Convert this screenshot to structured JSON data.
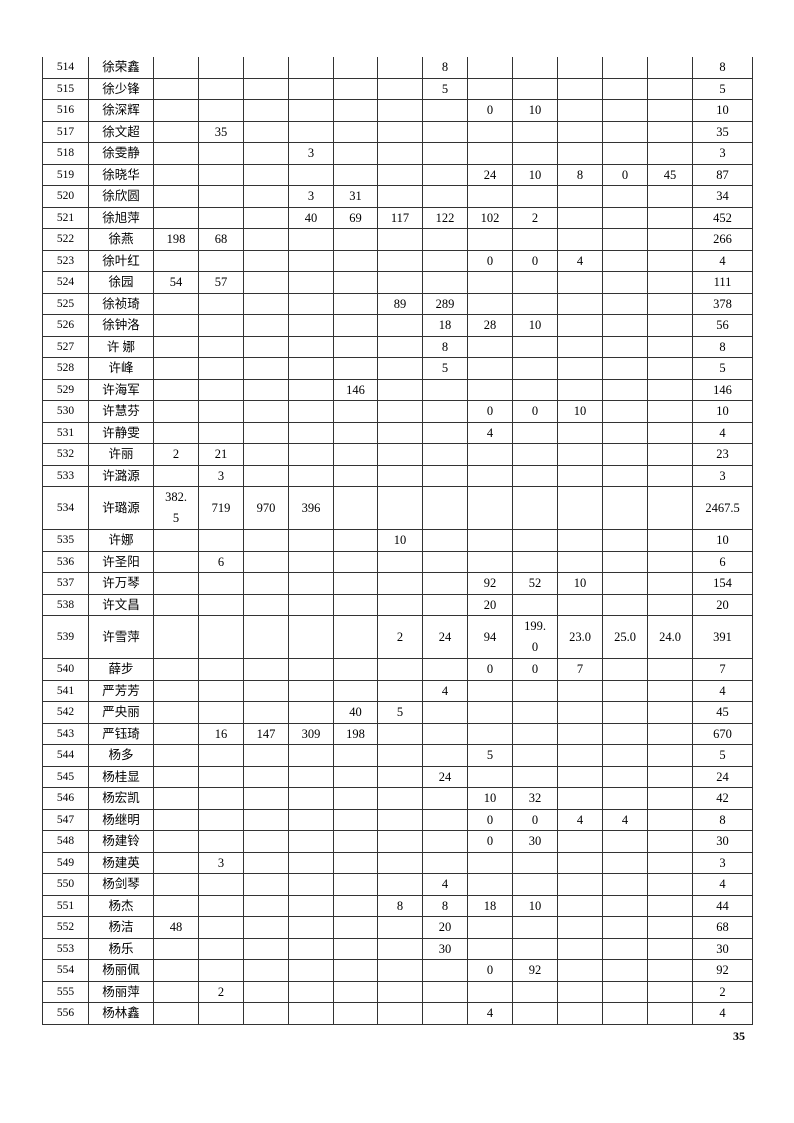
{
  "table": {
    "rows": [
      {
        "no": "514",
        "name": "徐荣鑫",
        "cells": [
          "",
          "",
          "",
          "",
          "",
          "",
          "8",
          "",
          "",
          "",
          "",
          ""
        ],
        "total": "8"
      },
      {
        "no": "515",
        "name": "徐少锋",
        "cells": [
          "",
          "",
          "",
          "",
          "",
          "",
          "5",
          "",
          "",
          "",
          "",
          ""
        ],
        "total": "5"
      },
      {
        "no": "516",
        "name": "徐深辉",
        "cells": [
          "",
          "",
          "",
          "",
          "",
          "",
          "",
          "0",
          "10",
          "",
          "",
          ""
        ],
        "total": "10"
      },
      {
        "no": "517",
        "name": "徐文超",
        "cells": [
          "",
          "35",
          "",
          "",
          "",
          "",
          "",
          "",
          "",
          "",
          "",
          ""
        ],
        "total": "35"
      },
      {
        "no": "518",
        "name": "徐雯静",
        "cells": [
          "",
          "",
          "",
          "3",
          "",
          "",
          "",
          "",
          "",
          "",
          "",
          ""
        ],
        "total": "3"
      },
      {
        "no": "519",
        "name": "徐晓华",
        "cells": [
          "",
          "",
          "",
          "",
          "",
          "",
          "",
          "24",
          "10",
          "8",
          "0",
          "45"
        ],
        "total": "87"
      },
      {
        "no": "520",
        "name": "徐欣圆",
        "cells": [
          "",
          "",
          "",
          "3",
          "31",
          "",
          "",
          "",
          "",
          "",
          "",
          ""
        ],
        "total": "34"
      },
      {
        "no": "521",
        "name": "徐旭萍",
        "cells": [
          "",
          "",
          "",
          "40",
          "69",
          "117",
          "122",
          "102",
          "2",
          "",
          "",
          ""
        ],
        "total": "452"
      },
      {
        "no": "522",
        "name": "徐燕",
        "cells": [
          "198",
          "68",
          "",
          "",
          "",
          "",
          "",
          "",
          "",
          "",
          "",
          ""
        ],
        "total": "266"
      },
      {
        "no": "523",
        "name": "徐叶红",
        "cells": [
          "",
          "",
          "",
          "",
          "",
          "",
          "",
          "0",
          "0",
          "4",
          "",
          ""
        ],
        "total": "4"
      },
      {
        "no": "524",
        "name": "徐园",
        "cells": [
          "54",
          "57",
          "",
          "",
          "",
          "",
          "",
          "",
          "",
          "",
          "",
          ""
        ],
        "total": "111"
      },
      {
        "no": "525",
        "name": "徐祯琦",
        "cells": [
          "",
          "",
          "",
          "",
          "",
          "89",
          "289",
          "",
          "",
          "",
          "",
          ""
        ],
        "total": "378"
      },
      {
        "no": "526",
        "name": "徐钟洛",
        "cells": [
          "",
          "",
          "",
          "",
          "",
          "",
          "18",
          "28",
          "10",
          "",
          "",
          ""
        ],
        "total": "56"
      },
      {
        "no": "527",
        "name": "许  娜",
        "cells": [
          "",
          "",
          "",
          "",
          "",
          "",
          "8",
          "",
          "",
          "",
          "",
          ""
        ],
        "total": "8"
      },
      {
        "no": "528",
        "name": "许峰",
        "cells": [
          "",
          "",
          "",
          "",
          "",
          "",
          "5",
          "",
          "",
          "",
          "",
          ""
        ],
        "total": "5"
      },
      {
        "no": "529",
        "name": "许海军",
        "cells": [
          "",
          "",
          "",
          "",
          "146",
          "",
          "",
          "",
          "",
          "",
          "",
          ""
        ],
        "total": "146"
      },
      {
        "no": "530",
        "name": "许慧芬",
        "cells": [
          "",
          "",
          "",
          "",
          "",
          "",
          "",
          "0",
          "0",
          "10",
          "",
          ""
        ],
        "total": "10"
      },
      {
        "no": "531",
        "name": "许静雯",
        "cells": [
          "",
          "",
          "",
          "",
          "",
          "",
          "",
          "4",
          "",
          "",
          "",
          ""
        ],
        "total": "4"
      },
      {
        "no": "532",
        "name": "许丽",
        "cells": [
          "2",
          "21",
          "",
          "",
          "",
          "",
          "",
          "",
          "",
          "",
          "",
          ""
        ],
        "total": "23"
      },
      {
        "no": "533",
        "name": "许潞源",
        "cells": [
          "",
          "3",
          "",
          "",
          "",
          "",
          "",
          "",
          "",
          "",
          "",
          ""
        ],
        "total": "3"
      },
      {
        "no": "534",
        "name": "许璐源",
        "cells": [
          "382.5",
          "719",
          "970",
          "396",
          "",
          "",
          "",
          "",
          "",
          "",
          "",
          ""
        ],
        "total": "2467.5"
      },
      {
        "no": "535",
        "name": "许娜",
        "cells": [
          "",
          "",
          "",
          "",
          "",
          "10",
          "",
          "",
          "",
          "",
          "",
          ""
        ],
        "total": "10"
      },
      {
        "no": "536",
        "name": "许圣阳",
        "cells": [
          "",
          "6",
          "",
          "",
          "",
          "",
          "",
          "",
          "",
          "",
          "",
          ""
        ],
        "total": "6"
      },
      {
        "no": "537",
        "name": "许万琴",
        "cells": [
          "",
          "",
          "",
          "",
          "",
          "",
          "",
          "92",
          "52",
          "10",
          "",
          ""
        ],
        "total": "154"
      },
      {
        "no": "538",
        "name": "许文昌",
        "cells": [
          "",
          "",
          "",
          "",
          "",
          "",
          "",
          "20",
          "",
          "",
          "",
          ""
        ],
        "total": "20"
      },
      {
        "no": "539",
        "name": "许雪萍",
        "cells": [
          "",
          "",
          "",
          "",
          "",
          "2",
          "24",
          "94",
          "199.0",
          "23.0",
          "25.0",
          "24.0"
        ],
        "total": "391"
      },
      {
        "no": "540",
        "name": "薛步",
        "cells": [
          "",
          "",
          "",
          "",
          "",
          "",
          "",
          "0",
          "0",
          "7",
          "",
          ""
        ],
        "total": "7"
      },
      {
        "no": "541",
        "name": "严芳芳",
        "cells": [
          "",
          "",
          "",
          "",
          "",
          "",
          "4",
          "",
          "",
          "",
          "",
          ""
        ],
        "total": "4"
      },
      {
        "no": "542",
        "name": "严央丽",
        "cells": [
          "",
          "",
          "",
          "",
          "40",
          "5",
          "",
          "",
          "",
          "",
          "",
          ""
        ],
        "total": "45"
      },
      {
        "no": "543",
        "name": "严钰琦",
        "cells": [
          "",
          "16",
          "147",
          "309",
          "198",
          "",
          "",
          "",
          "",
          "",
          "",
          ""
        ],
        "total": "670"
      },
      {
        "no": "544",
        "name": "杨多",
        "cells": [
          "",
          "",
          "",
          "",
          "",
          "",
          "",
          "5",
          "",
          "",
          "",
          ""
        ],
        "total": "5"
      },
      {
        "no": "545",
        "name": "杨桂显",
        "cells": [
          "",
          "",
          "",
          "",
          "",
          "",
          "24",
          "",
          "",
          "",
          "",
          ""
        ],
        "total": "24"
      },
      {
        "no": "546",
        "name": "杨宏凯",
        "cells": [
          "",
          "",
          "",
          "",
          "",
          "",
          "",
          "10",
          "32",
          "",
          "",
          ""
        ],
        "total": "42"
      },
      {
        "no": "547",
        "name": "杨继明",
        "cells": [
          "",
          "",
          "",
          "",
          "",
          "",
          "",
          "0",
          "0",
          "4",
          "4",
          ""
        ],
        "total": "8"
      },
      {
        "no": "548",
        "name": "杨建铃",
        "cells": [
          "",
          "",
          "",
          "",
          "",
          "",
          "",
          "0",
          "30",
          "",
          "",
          ""
        ],
        "total": "30"
      },
      {
        "no": "549",
        "name": "杨建英",
        "cells": [
          "",
          "3",
          "",
          "",
          "",
          "",
          "",
          "",
          "",
          "",
          "",
          ""
        ],
        "total": "3"
      },
      {
        "no": "550",
        "name": "杨剑琴",
        "cells": [
          "",
          "",
          "",
          "",
          "",
          "",
          "4",
          "",
          "",
          "",
          "",
          ""
        ],
        "total": "4"
      },
      {
        "no": "551",
        "name": "杨杰",
        "cells": [
          "",
          "",
          "",
          "",
          "",
          "8",
          "8",
          "18",
          "10",
          "",
          "",
          ""
        ],
        "total": "44"
      },
      {
        "no": "552",
        "name": "杨洁",
        "cells": [
          "48",
          "",
          "",
          "",
          "",
          "",
          "20",
          "",
          "",
          "",
          "",
          ""
        ],
        "total": "68"
      },
      {
        "no": "553",
        "name": "杨乐",
        "cells": [
          "",
          "",
          "",
          "",
          "",
          "",
          "30",
          "",
          "",
          "",
          "",
          ""
        ],
        "total": "30"
      },
      {
        "no": "554",
        "name": "杨丽佩",
        "cells": [
          "",
          "",
          "",
          "",
          "",
          "",
          "",
          "0",
          "92",
          "",
          "",
          ""
        ],
        "total": "92"
      },
      {
        "no": "555",
        "name": "杨丽萍",
        "cells": [
          "",
          "2",
          "",
          "",
          "",
          "",
          "",
          "",
          "",
          "",
          "",
          ""
        ],
        "total": "2"
      },
      {
        "no": "556",
        "name": "杨林鑫",
        "cells": [
          "",
          "",
          "",
          "",
          "",
          "",
          "",
          "4",
          "",
          "",
          "",
          ""
        ],
        "total": "4"
      }
    ]
  },
  "footer": {
    "page_number": "35"
  }
}
